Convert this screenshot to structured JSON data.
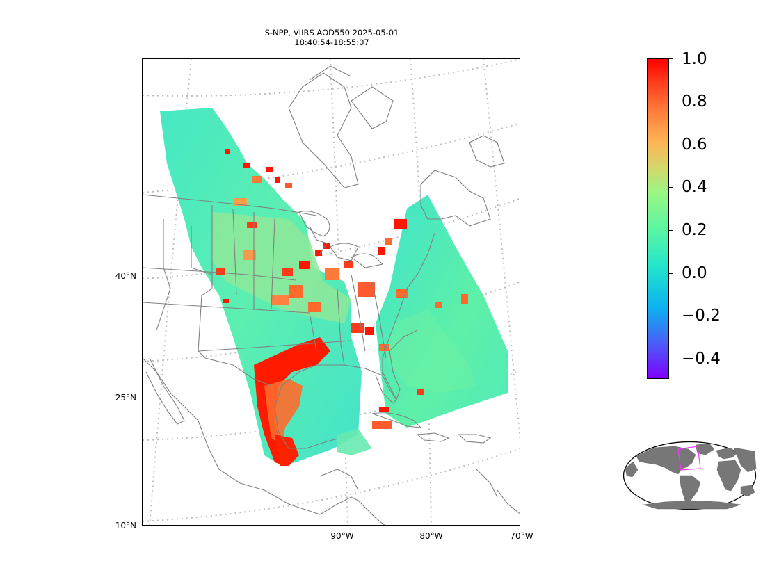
{
  "title": {
    "line1": "S-NPP, VIIRS AOD550 2025-05-01",
    "line2": "18:40:54-18:55:07"
  },
  "lat_labels": [
    "40°N",
    "25°N",
    "10°N"
  ],
  "lon_labels": [
    "90°W",
    "80°W",
    "70°W"
  ],
  "colorbar": {
    "ticks": [
      "1.0",
      "0.8",
      "0.6",
      "0.4",
      "0.2",
      "0.0",
      "−0.2",
      "−0.4"
    ],
    "range": [
      -0.5,
      1.0
    ],
    "colormap": "rainbow"
  },
  "colors": {
    "coastline": "#808080",
    "gridline": "#bdbdbd",
    "low_aod": "#3fe5c8",
    "high_aod": "#ff1500",
    "inset_land": "#777777",
    "inset_box": "#ff33ff"
  },
  "inset": {
    "name": "globe-locator"
  }
}
